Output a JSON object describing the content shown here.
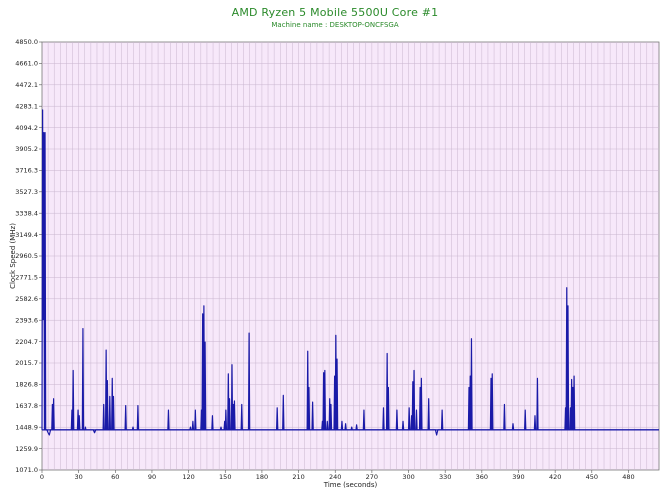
{
  "chart_data": {
    "type": "line",
    "title": "AMD Ryzen 5 Mobile 5500U Core #1",
    "subtitle": "Machine name : DESKTOP-ONCFSGA",
    "xlabel": "Time (seconds)",
    "ylabel": "Clock Speed (MHz)",
    "xlim": [
      0,
      505
    ],
    "ylim": [
      1071.0,
      4850.0
    ],
    "x_ticks": [
      0,
      30,
      60,
      90,
      120,
      150,
      180,
      210,
      240,
      270,
      300,
      330,
      360,
      390,
      420,
      450,
      480
    ],
    "y_ticks": [
      "1071.0",
      "1259.9",
      "1448.9",
      "1637.8",
      "1826.8",
      "2015.7",
      "2204.7",
      "2393.6",
      "2582.6",
      "2771.5",
      "2960.5",
      "3149.4",
      "3338.4",
      "3527.3",
      "3716.3",
      "3905.2",
      "4094.2",
      "4283.1",
      "4472.1",
      "4661.0",
      "4850.0"
    ],
    "grid": true,
    "baseline": 1425,
    "series": [
      {
        "color": "#1a1aa8",
        "points": [
          [
            0,
            1425
          ],
          [
            0.5,
            4250
          ],
          [
            1,
            2400
          ],
          [
            1.5,
            4050
          ],
          [
            2,
            1425
          ],
          [
            2.5,
            4050
          ],
          [
            3,
            1425
          ],
          [
            4,
            1425
          ],
          [
            5,
            1400
          ],
          [
            6,
            1380
          ],
          [
            7,
            1425
          ],
          [
            8,
            1425
          ],
          [
            8.5,
            1650
          ],
          [
            9,
            1425
          ],
          [
            9.5,
            1700
          ],
          [
            10,
            1425
          ],
          [
            24,
            1425
          ],
          [
            24.5,
            1600
          ],
          [
            25,
            1425
          ],
          [
            25.5,
            1950
          ],
          [
            26,
            1425
          ],
          [
            29,
            1425
          ],
          [
            29.5,
            1600
          ],
          [
            30,
            1425
          ],
          [
            30.5,
            1550
          ],
          [
            31,
            1425
          ],
          [
            33,
            1425
          ],
          [
            33.5,
            2320
          ],
          [
            34,
            1425
          ],
          [
            35,
            1425
          ],
          [
            35.5,
            1450
          ],
          [
            36,
            1425
          ],
          [
            42,
            1425
          ],
          [
            43,
            1400
          ],
          [
            44,
            1425
          ],
          [
            50,
            1425
          ],
          [
            50.5,
            1650
          ],
          [
            51,
            1425
          ],
          [
            52,
            1425
          ],
          [
            52.5,
            2130
          ],
          [
            53,
            1425
          ],
          [
            53.5,
            1860
          ],
          [
            54,
            1425
          ],
          [
            55,
            1425
          ],
          [
            55.5,
            1720
          ],
          [
            56,
            1425
          ],
          [
            57,
            1425
          ],
          [
            57.5,
            1880
          ],
          [
            58,
            1425
          ],
          [
            58.5,
            1720
          ],
          [
            59,
            1425
          ],
          [
            68,
            1425
          ],
          [
            68.5,
            1640
          ],
          [
            69,
            1425
          ],
          [
            74,
            1425
          ],
          [
            74.5,
            1450
          ],
          [
            75,
            1425
          ],
          [
            78,
            1425
          ],
          [
            78.5,
            1640
          ],
          [
            79,
            1425
          ],
          [
            103,
            1425
          ],
          [
            103.5,
            1600
          ],
          [
            104,
            1425
          ],
          [
            121,
            1425
          ],
          [
            121.5,
            1450
          ],
          [
            122,
            1425
          ],
          [
            123,
            1425
          ],
          [
            123.5,
            1500
          ],
          [
            124,
            1425
          ],
          [
            125,
            1425
          ],
          [
            125.5,
            1600
          ],
          [
            126,
            1425
          ],
          [
            130,
            1425
          ],
          [
            130.5,
            1600
          ],
          [
            131,
            1425
          ],
          [
            131.5,
            2450
          ],
          [
            132,
            1425
          ],
          [
            132.5,
            2520
          ],
          [
            133,
            1425
          ],
          [
            133.5,
            2200
          ],
          [
            134,
            1425
          ],
          [
            139,
            1425
          ],
          [
            139.5,
            1550
          ],
          [
            140,
            1425
          ],
          [
            146,
            1425
          ],
          [
            146.5,
            1450
          ],
          [
            147,
            1425
          ],
          [
            149,
            1425
          ],
          [
            149.5,
            1500
          ],
          [
            150,
            1425
          ],
          [
            150.5,
            1600
          ],
          [
            151,
            1425
          ],
          [
            152,
            1425
          ],
          [
            152.5,
            1920
          ],
          [
            153,
            1425
          ],
          [
            153.5,
            1700
          ],
          [
            154,
            1425
          ],
          [
            155,
            1425
          ],
          [
            155.5,
            2000
          ],
          [
            156,
            1425
          ],
          [
            156.5,
            1650
          ],
          [
            157,
            1425
          ],
          [
            157.5,
            1680
          ],
          [
            158,
            1425
          ],
          [
            163,
            1425
          ],
          [
            163.5,
            1650
          ],
          [
            164,
            1425
          ],
          [
            169,
            1425
          ],
          [
            169.5,
            2280
          ],
          [
            170,
            1425
          ],
          [
            192,
            1425
          ],
          [
            192.5,
            1620
          ],
          [
            193,
            1425
          ],
          [
            197,
            1425
          ],
          [
            197.5,
            1730
          ],
          [
            198,
            1425
          ],
          [
            217,
            1425
          ],
          [
            217.5,
            2120
          ],
          [
            218,
            1425
          ],
          [
            218.5,
            1800
          ],
          [
            219,
            1425
          ],
          [
            221,
            1425
          ],
          [
            221.5,
            1670
          ],
          [
            222,
            1425
          ],
          [
            229,
            1425
          ],
          [
            229.5,
            1500
          ],
          [
            230,
            1425
          ],
          [
            230.5,
            1930
          ],
          [
            231,
            1425
          ],
          [
            231.5,
            1950
          ],
          [
            232,
            1425
          ],
          [
            233,
            1425
          ],
          [
            233.5,
            1500
          ],
          [
            234,
            1425
          ],
          [
            235,
            1425
          ],
          [
            235.5,
            1700
          ],
          [
            236,
            1425
          ],
          [
            236.5,
            1650
          ],
          [
            237,
            1425
          ],
          [
            239,
            1425
          ],
          [
            239.5,
            1900
          ],
          [
            240,
            1425
          ],
          [
            240.5,
            2260
          ],
          [
            241,
            1425
          ],
          [
            241.5,
            2050
          ],
          [
            242,
            1425
          ],
          [
            245,
            1425
          ],
          [
            245.5,
            1500
          ],
          [
            246,
            1425
          ],
          [
            248,
            1425
          ],
          [
            248.5,
            1480
          ],
          [
            249,
            1425
          ],
          [
            253,
            1425
          ],
          [
            253.5,
            1450
          ],
          [
            254,
            1425
          ],
          [
            257,
            1425
          ],
          [
            257.5,
            1470
          ],
          [
            258,
            1425
          ],
          [
            263,
            1425
          ],
          [
            263.5,
            1600
          ],
          [
            264,
            1425
          ],
          [
            279,
            1425
          ],
          [
            279.5,
            1620
          ],
          [
            280,
            1425
          ],
          [
            282,
            1425
          ],
          [
            282.5,
            2100
          ],
          [
            283,
            1425
          ],
          [
            283.5,
            1800
          ],
          [
            284,
            1425
          ],
          [
            290,
            1425
          ],
          [
            290.5,
            1600
          ],
          [
            291,
            1425
          ],
          [
            295,
            1425
          ],
          [
            295.5,
            1500
          ],
          [
            296,
            1425
          ],
          [
            300,
            1425
          ],
          [
            300.5,
            1620
          ],
          [
            301,
            1425
          ],
          [
            302,
            1425
          ],
          [
            302.5,
            1550
          ],
          [
            303,
            1425
          ],
          [
            303.5,
            1850
          ],
          [
            304,
            1425
          ],
          [
            304.5,
            1950
          ],
          [
            305,
            1425
          ],
          [
            306,
            1425
          ],
          [
            306.5,
            1600
          ],
          [
            307,
            1425
          ],
          [
            309,
            1425
          ],
          [
            309.5,
            1800
          ],
          [
            310,
            1425
          ],
          [
            310.5,
            1880
          ],
          [
            311,
            1425
          ],
          [
            316,
            1425
          ],
          [
            316.5,
            1700
          ],
          [
            317,
            1425
          ],
          [
            322,
            1425
          ],
          [
            323,
            1380
          ],
          [
            324,
            1425
          ],
          [
            327,
            1425
          ],
          [
            327.5,
            1600
          ],
          [
            328,
            1425
          ],
          [
            349,
            1425
          ],
          [
            349.5,
            1800
          ],
          [
            350,
            1425
          ],
          [
            350.5,
            1900
          ],
          [
            351,
            1425
          ],
          [
            351.5,
            2230
          ],
          [
            352,
            1425
          ],
          [
            367,
            1425
          ],
          [
            367.5,
            1880
          ],
          [
            368,
            1425
          ],
          [
            368.5,
            1920
          ],
          [
            369,
            1425
          ],
          [
            378,
            1425
          ],
          [
            378.5,
            1650
          ],
          [
            379,
            1425
          ],
          [
            385,
            1425
          ],
          [
            385.5,
            1480
          ],
          [
            386,
            1425
          ],
          [
            395,
            1425
          ],
          [
            395.5,
            1600
          ],
          [
            396,
            1425
          ],
          [
            403,
            1425
          ],
          [
            403.5,
            1550
          ],
          [
            404,
            1425
          ],
          [
            405,
            1425
          ],
          [
            405.5,
            1880
          ],
          [
            406,
            1425
          ],
          [
            428,
            1425
          ],
          [
            428.5,
            1620
          ],
          [
            429,
            1425
          ],
          [
            429.5,
            2680
          ],
          [
            430,
            1425
          ],
          [
            430.5,
            2520
          ],
          [
            431,
            1425
          ],
          [
            432,
            1425
          ],
          [
            432.5,
            1620
          ],
          [
            433,
            1425
          ],
          [
            433.5,
            1870
          ],
          [
            434,
            1425
          ],
          [
            434.5,
            1800
          ],
          [
            435,
            1425
          ],
          [
            435.5,
            1900
          ],
          [
            436,
            1425
          ],
          [
            505,
            1425
          ]
        ]
      }
    ]
  }
}
